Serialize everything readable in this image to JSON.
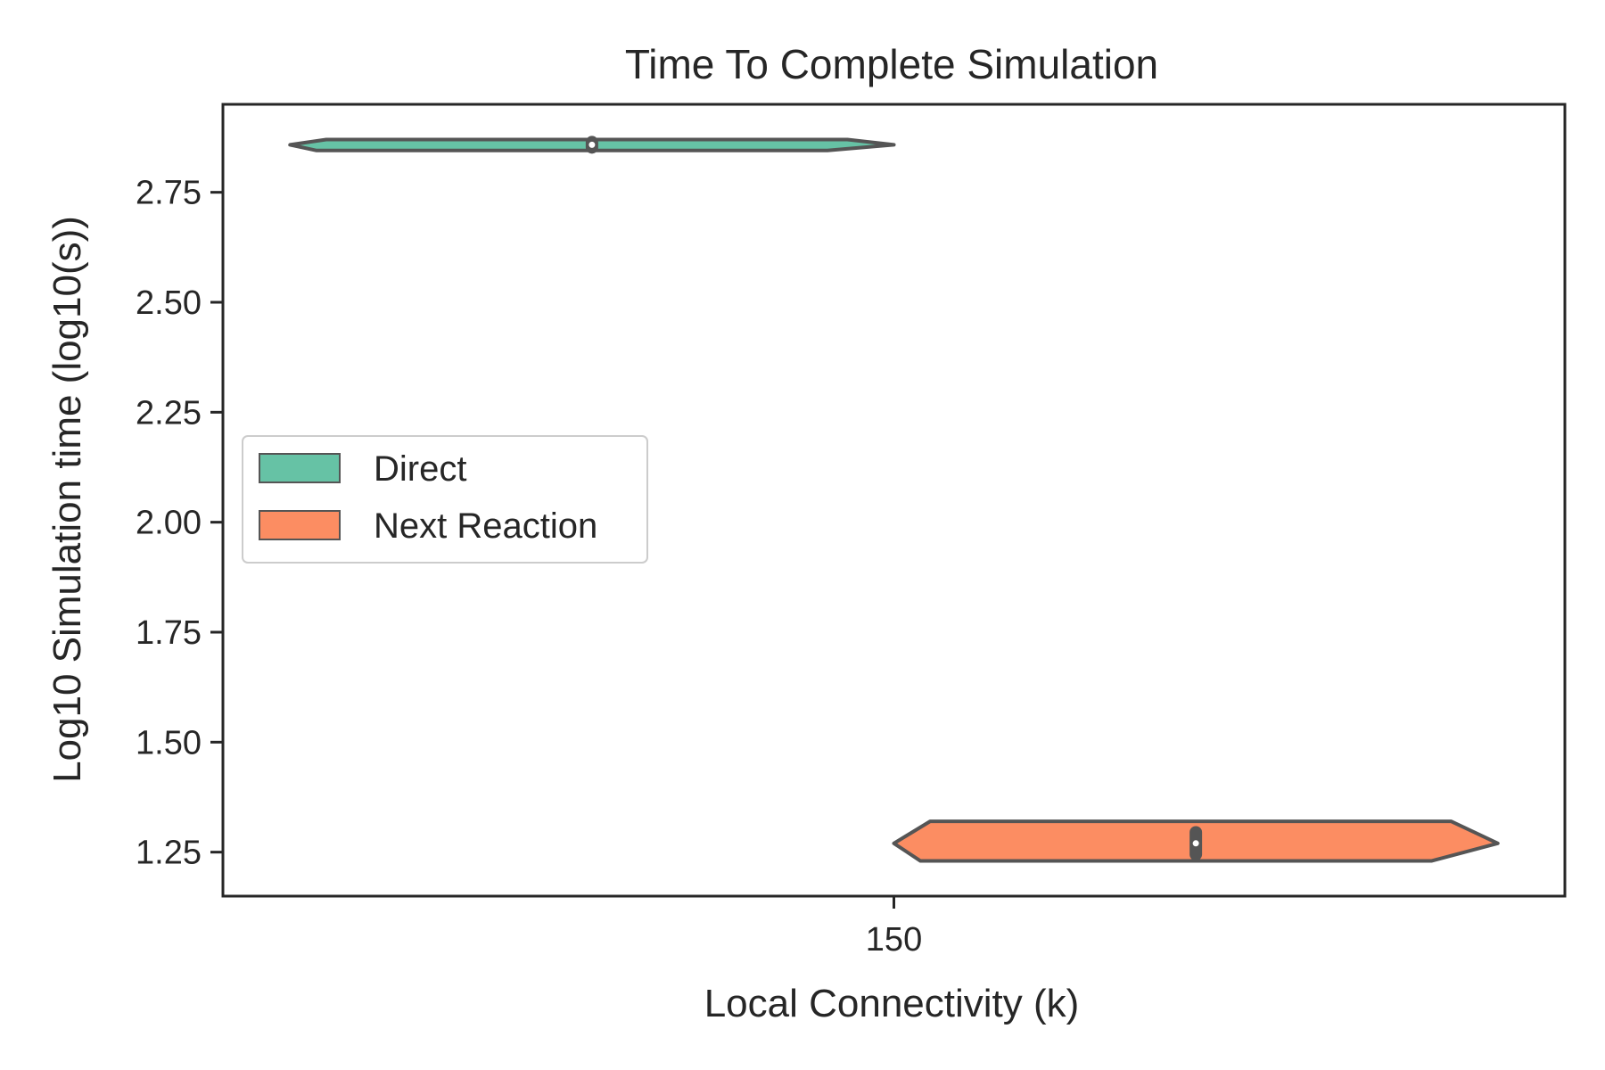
{
  "chart_data": {
    "type": "violin",
    "title": "Time To Complete Simulation",
    "xlabel": "Local Connectivity (k)",
    "ylabel": "Log10 Simulation time (log10(s))",
    "categories": [
      "150"
    ],
    "ylim": [
      1.15,
      2.95
    ],
    "yticks": [
      1.25,
      1.5,
      1.75,
      2.0,
      2.25,
      2.5,
      2.75
    ],
    "ytick_labels": [
      "1.25",
      "1.50",
      "1.75",
      "2.00",
      "2.25",
      "2.50",
      "2.75"
    ],
    "grid": false,
    "legend": {
      "placement": "center-left",
      "entries": [
        "Direct",
        "Next Reaction"
      ]
    },
    "series": [
      {
        "name": "Direct",
        "color": "#66c2a5",
        "category": "150",
        "min": 2.845,
        "max": 2.87,
        "median": 2.858,
        "q1": 2.852,
        "q3": 2.864
      },
      {
        "name": "Next Reaction",
        "color": "#fc8d62",
        "category": "150",
        "min": 1.23,
        "max": 1.32,
        "median": 1.27,
        "q1": 1.245,
        "q3": 1.295
      }
    ],
    "outline_color": "#555555"
  }
}
